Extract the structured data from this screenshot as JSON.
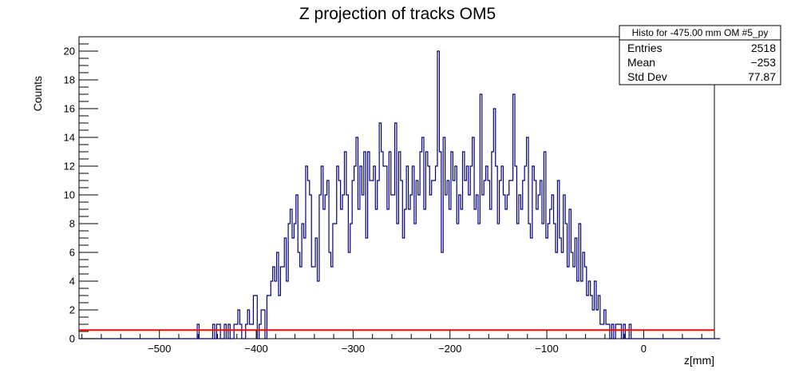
{
  "chart_data": {
    "type": "histogram",
    "title": "Z projection of tracks OM5",
    "xlabel": "z[mm]",
    "ylabel": "Counts",
    "xlim": [
      -583,
      73
    ],
    "ylim": [
      0,
      21
    ],
    "x_ticks": [
      -500,
      -400,
      -300,
      -200,
      -100,
      0
    ],
    "x_tick_labels": [
      "−500",
      "−400",
      "−300",
      "−200",
      "−100",
      "0"
    ],
    "y_ticks": [
      0,
      2,
      4,
      6,
      8,
      10,
      12,
      14,
      16,
      18,
      20
    ],
    "y_tick_labels": [
      "0",
      "2",
      "4",
      "6",
      "8",
      "10",
      "12",
      "14",
      "16",
      "18",
      "20"
    ],
    "bin_start": -583,
    "bin_width": 2,
    "series": [
      {
        "color": "#000080",
        "values": [
          0,
          0,
          0,
          0,
          0,
          0,
          0,
          0,
          0,
          0,
          0,
          0,
          0,
          0,
          0,
          0,
          0,
          0,
          0,
          0,
          0,
          0,
          0,
          0,
          0,
          0,
          0,
          0,
          0,
          0,
          0,
          0,
          0,
          0,
          0,
          0,
          0,
          0,
          0,
          0,
          0,
          0,
          0,
          0,
          0,
          0,
          0,
          0,
          0,
          0,
          0,
          0,
          0,
          0,
          0,
          0,
          0,
          0,
          0,
          0,
          0,
          1,
          0,
          0,
          0,
          0,
          0,
          0,
          0,
          1,
          0,
          1,
          1,
          0,
          0,
          1,
          0,
          1,
          0,
          0,
          1,
          1,
          2,
          1,
          0,
          0,
          1,
          2,
          1,
          1,
          3,
          3,
          0,
          1,
          2,
          2,
          0,
          3,
          3,
          4,
          5,
          4,
          6,
          3,
          5,
          5,
          7,
          4,
          8,
          9,
          7,
          8,
          10,
          6,
          5,
          8,
          7,
          12,
          11,
          10,
          5,
          5,
          7,
          4,
          10,
          12,
          9,
          10,
          11,
          6,
          5,
          8,
          8,
          12,
          11,
          9,
          10,
          13,
          10,
          6,
          8,
          11,
          12,
          14,
          9,
          12,
          10,
          13,
          7,
          13,
          11,
          11,
          12,
          9,
          11,
          15,
          13,
          12,
          12,
          9,
          13,
          10,
          10,
          15,
          8,
          13,
          11,
          7,
          9,
          12,
          9,
          10,
          12,
          8,
          11,
          10,
          13,
          14,
          9,
          13,
          12,
          10,
          11,
          11,
          12,
          20,
          13,
          6,
          14,
          10,
          11,
          9,
          13,
          11,
          12,
          8,
          10,
          9,
          13,
          11,
          12,
          10,
          12,
          14,
          9,
          10,
          8,
          17,
          10,
          11,
          12,
          11,
          9,
          13,
          16,
          12,
          8,
          11,
          12,
          10,
          9,
          10,
          11,
          11,
          17,
          12,
          8,
          10,
          9,
          11,
          12,
          14,
          8,
          7,
          12,
          11,
          9,
          10,
          11,
          8,
          13,
          7,
          8,
          9,
          10,
          8,
          6,
          11,
          7,
          6,
          10,
          8,
          5,
          9,
          6,
          5,
          7,
          4,
          8,
          4,
          6,
          5,
          3,
          4,
          3,
          2,
          4,
          2,
          3,
          1,
          1,
          2,
          1,
          1,
          0,
          1,
          0,
          1,
          1,
          1,
          0,
          1,
          0,
          0,
          1,
          0,
          0,
          0,
          0,
          0,
          0,
          0,
          0,
          0,
          0,
          0,
          0,
          0,
          0,
          0,
          0,
          0,
          0,
          0,
          0,
          0,
          0,
          0,
          0,
          0,
          0,
          0,
          0,
          0,
          0,
          0,
          0,
          0,
          0,
          0,
          0,
          0,
          0,
          0,
          0,
          0,
          0,
          0,
          0,
          0,
          0
        ]
      }
    ],
    "fit_line": {
      "y": 0.6,
      "color": "#ff0000"
    },
    "stats_box": {
      "title": "Histo for -475.00 mm OM #5_py",
      "rows": [
        {
          "label": "Entries",
          "value": "2518"
        },
        {
          "label": "Mean",
          "value": "−253"
        },
        {
          "label": "Std Dev",
          "value": "77.87"
        }
      ]
    }
  }
}
